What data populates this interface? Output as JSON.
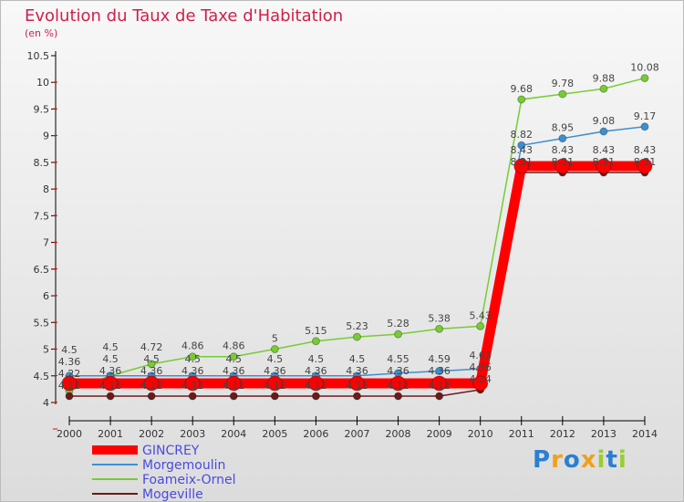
{
  "chart_data": {
    "type": "line",
    "title": "Evolution du Taux de Taxe d'Habitation",
    "ylabel": "(en %)",
    "ylim": [
      4,
      10.5
    ],
    "yticks": [
      "4",
      "4.5",
      "5",
      "5.5",
      "6",
      "6.5",
      "7",
      "7.5",
      "8",
      "8.5",
      "9",
      "9.5",
      "10",
      "10.5"
    ],
    "x": [
      "2000",
      "2001",
      "2002",
      "2003",
      "2004",
      "2005",
      "2006",
      "2007",
      "2008",
      "2009",
      "2010",
      "2011",
      "2012",
      "2013",
      "2014"
    ],
    "series": [
      {
        "name": "GINCREY",
        "color": "#ff0000",
        "values": [
          4.36,
          4.36,
          4.36,
          4.36,
          4.36,
          4.36,
          4.36,
          4.36,
          4.36,
          4.36,
          4.36,
          8.43,
          8.43,
          8.43,
          8.43
        ]
      },
      {
        "name": "Morgemoulin",
        "color": "#3d8fd0",
        "values": [
          4.5,
          4.5,
          4.5,
          4.5,
          4.5,
          4.5,
          4.5,
          4.5,
          4.55,
          4.59,
          4.63,
          8.82,
          8.95,
          9.08,
          9.17
        ]
      },
      {
        "name": "Foameix-Ornel",
        "color": "#77cc33",
        "values": [
          4.22,
          4.5,
          4.72,
          4.86,
          4.86,
          5,
          5.15,
          5.23,
          5.28,
          5.38,
          5.43,
          9.68,
          9.78,
          9.88,
          10.08
        ]
      },
      {
        "name": "Mogeville",
        "color": "#6a1a1a",
        "values": [
          4.12,
          4.12,
          4.12,
          4.12,
          4.12,
          4.12,
          4.12,
          4.12,
          4.12,
          4.12,
          4.24,
          8.31,
          8.31,
          8.31,
          8.31
        ]
      }
    ],
    "legend": "bottom-left"
  },
  "logo": "Proxiti"
}
